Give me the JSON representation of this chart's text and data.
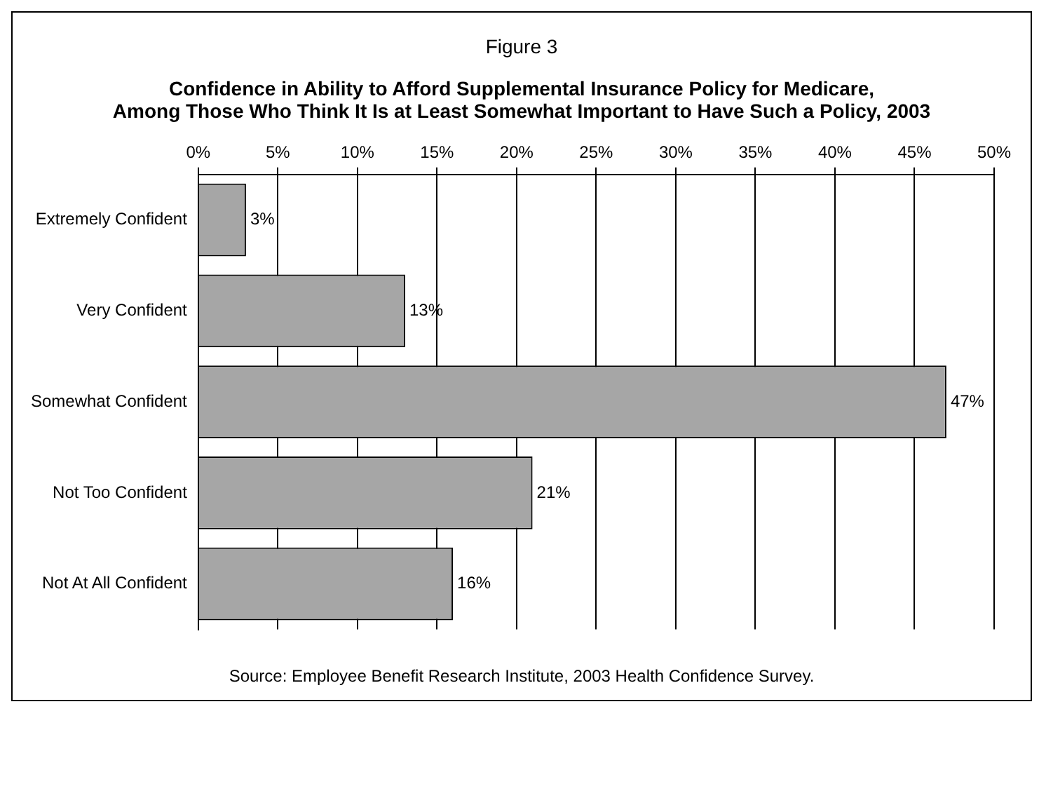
{
  "chart_data": {
    "type": "bar",
    "orientation": "horizontal",
    "title": "Figure 3",
    "subtitle": "Confidence in Ability to Afford Supplemental Insurance Policy for Medicare,\nAmong Those Who Think It Is at Least Somewhat Important to Have Such a Policy, 2003",
    "categories": [
      "Extremely Confident",
      "Very Confident",
      "Somewhat Confident",
      "Not Too Confident",
      "Not At All Confident"
    ],
    "values": [
      3,
      13,
      47,
      21,
      16
    ],
    "color": "#a6a6a6",
    "value_labels": [
      "3%",
      "13%",
      "47%",
      "21%",
      "16%"
    ],
    "xlim": [
      0,
      50
    ],
    "xticks": [
      {
        "value": 0,
        "label": "0%"
      },
      {
        "value": 5,
        "label": "5%"
      },
      {
        "value": 10,
        "label": "10%"
      },
      {
        "value": 15,
        "label": "15%"
      },
      {
        "value": 20,
        "label": "20%"
      },
      {
        "value": 25,
        "label": "25%"
      },
      {
        "value": 30,
        "label": "30%"
      },
      {
        "value": 35,
        "label": "35%"
      },
      {
        "value": 40,
        "label": "40%"
      },
      {
        "value": 45,
        "label": "45%"
      },
      {
        "value": 50,
        "label": "50%"
      }
    ],
    "grid": "x",
    "legend": false,
    "annotations": [
      "Source: Employee Benefit Research Institute, 2003 Health Confidence Survey."
    ]
  }
}
